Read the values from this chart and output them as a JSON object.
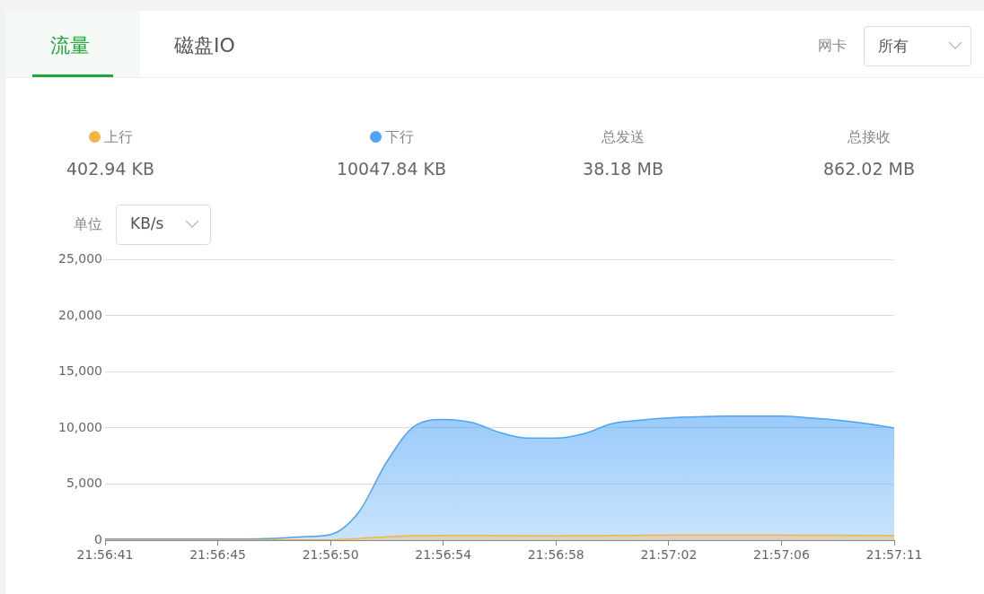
{
  "chart_data": {
    "type": "area",
    "annotations": [
      "流量",
      "磁盘IO",
      "网卡",
      "所有",
      "402.94 KB",
      "10047.84 KB",
      "总发送",
      "38.18 MB",
      "总接收",
      "862.02 MB",
      "单位",
      "KB/s"
    ],
    "categories": [
      "21:56:41",
      null,
      null,
      null,
      "21:56:45",
      null,
      null,
      null,
      "21:56:50",
      null,
      null,
      null,
      "21:56:54",
      null,
      null,
      null,
      "21:56:58",
      null,
      null,
      null,
      "21:57:02",
      null,
      null,
      null,
      "21:57:06",
      null,
      null,
      null,
      "21:57:11"
    ],
    "series": [
      {
        "name": "上行",
        "color": "#f5b342",
        "values": [
          20,
          20,
          20,
          20,
          20,
          20,
          20,
          20,
          30,
          150,
          300,
          400,
          420,
          420,
          400,
          380,
          380,
          400,
          420,
          430,
          450,
          450,
          450,
          450,
          450,
          440,
          430,
          420,
          400
        ]
      },
      {
        "name": "下行",
        "color": "#4da3f7",
        "values": [
          100,
          100,
          100,
          100,
          100,
          100,
          150,
          300,
          500,
          2500,
          7000,
          10200,
          10750,
          10500,
          9600,
          9100,
          9100,
          9500,
          10400,
          10700,
          10900,
          11000,
          11050,
          11050,
          11050,
          10900,
          10700,
          10400,
          10000
        ]
      }
    ],
    "ylim": [
      0,
      25000
    ],
    "yticks": [
      {
        "value": 0,
        "label": "0"
      },
      {
        "value": 5000,
        "label": "5,000"
      },
      {
        "value": 10000,
        "label": "10,000"
      },
      {
        "value": 15000,
        "label": "15,000"
      },
      {
        "value": 20000,
        "label": "20,000"
      },
      {
        "value": 25000,
        "label": "25,000"
      }
    ],
    "grid": "y",
    "legend": "top",
    "marker": "none"
  }
}
